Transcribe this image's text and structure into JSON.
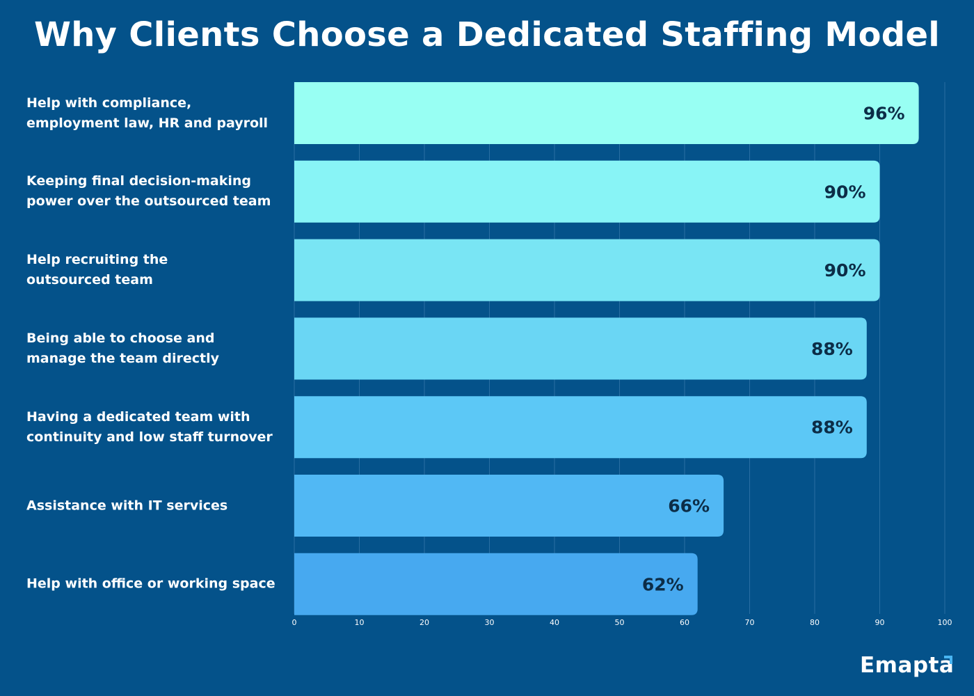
{
  "chart_data": {
    "type": "bar",
    "orientation": "horizontal",
    "title": "Why Clients Choose a Dedicated Staffing Model",
    "categories": [
      "Help with compliance,\nemployment law, HR and payroll",
      "Keeping final decision-making\npower over the outsourced team",
      "Help recruiting the\noutsourced team",
      "Being able to choose and\nmanage the team directly",
      "Having a dedicated team with\ncontinuity and low staff turnover",
      "Assistance with IT services",
      "Help with office or working space"
    ],
    "values": [
      96,
      90,
      90,
      88,
      88,
      66,
      62
    ],
    "value_labels": [
      "96%",
      "90%",
      "90%",
      "88%",
      "88%",
      "66%",
      "62%"
    ],
    "bar_colors": [
      "#98fff3",
      "#88f4f6",
      "#79e5f4",
      "#6ad6f4",
      "#5cc8f6",
      "#51b8f4",
      "#47a9f0"
    ],
    "xlim": [
      0,
      100
    ],
    "xticks": [
      "0",
      "10",
      "20",
      "30",
      "40",
      "50",
      "60",
      "70",
      "80",
      "90",
      "100"
    ],
    "xlabel": "",
    "ylabel": "",
    "grid": "vertical",
    "legend": "none"
  },
  "colors": {
    "background": "#04528a",
    "gridline": "#2a6fa3",
    "label_text": "#ffffff",
    "value_text": "#0c2d47",
    "accent": "#49b5f2"
  },
  "brand": {
    "logo_text": "Emapta"
  }
}
